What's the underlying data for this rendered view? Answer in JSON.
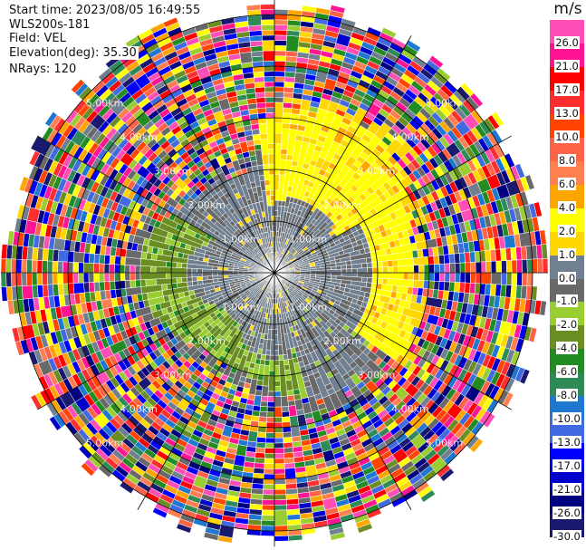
{
  "info": {
    "start_time": "Start time: 2023/08/05 16:49:55",
    "instrument": "WLS200s-181",
    "field": "Field: VEL",
    "elevation": "Elevation(deg): 35.30",
    "nrays": "NRays: 120"
  },
  "chart_data": {
    "type": "ppi",
    "title": "Start time: 2023/08/05 16:49:55",
    "field": "VEL",
    "units": "m/s",
    "elevation_deg": 35.3,
    "n_rays": 120,
    "range_rings_km": [
      1,
      2,
      3,
      4,
      5
    ],
    "ring_labels": [
      "1.00km",
      "2.00km",
      "3.00km",
      "4.00km",
      "5.00km"
    ],
    "max_range_km": 5.3,
    "colorbar": {
      "title": "m/s",
      "labels": [
        "26.0",
        "21.0",
        "17.0",
        "13.0",
        "10.0",
        "8.0",
        "6.0",
        "4.0",
        "2.0",
        "1.0",
        "0.0",
        "-1.0",
        "-2.0",
        "-4.0",
        "-6.0",
        "-8.0",
        "-10.0",
        "-13.0",
        "-17.0",
        "-21.0",
        "-26.0",
        "-30.0"
      ],
      "colors": [
        "#ff4fb6",
        "#ff1493",
        "#ff0000",
        "#ff2e2e",
        "#ff4500",
        "#ff6347",
        "#ff7f50",
        "#ffa500",
        "#ffff00",
        "#ffd700",
        "#708090",
        "#696969",
        "#9acd32",
        "#6b8e23",
        "#228b22",
        "#2e8b57",
        "#1e78d2",
        "#4169e1",
        "#0000ff",
        "#0000cd",
        "#000080",
        "#191970"
      ]
    },
    "field_summary": {
      "near_range_km": 2.3,
      "near_range_values": "mostly 0 to 1 m/s (gray), +2 to +4 m/s (yellow) to NE/E, -1 to -4 m/s (green) to SW/S",
      "far_range": "noise across full scale"
    }
  }
}
